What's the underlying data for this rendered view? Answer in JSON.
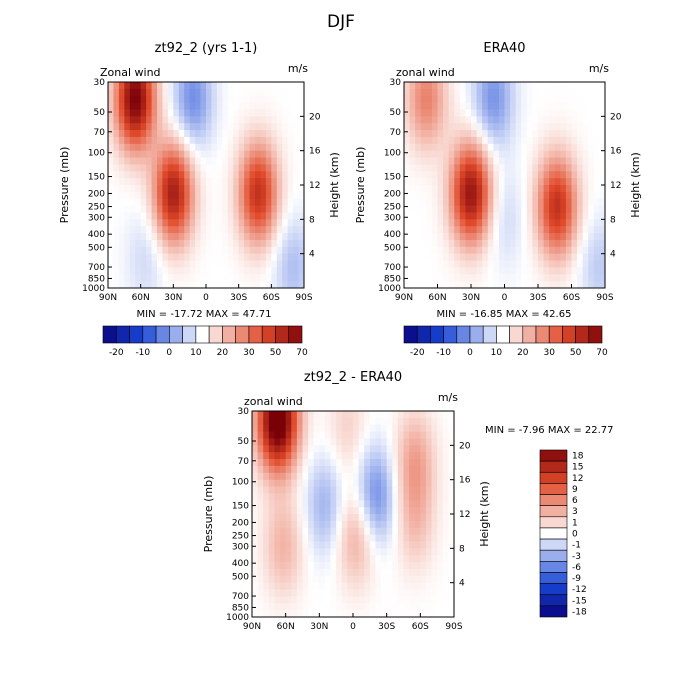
{
  "figure_title": "DJF",
  "colors": {
    "blue_dark": "#08007a",
    "blue": "#1846d6",
    "red": "#e14a2a",
    "red_dark": "#7a0008",
    "white": "#ffffff"
  },
  "chart_data": [
    {
      "type": "heatmap",
      "title": "zt92_2 (yrs 1-1)",
      "corner_left": "Zonal wind",
      "corner_right": "m/s",
      "xlabel": "",
      "ylabel": "Pressure (mb)",
      "ylabel_right": "Height (km)",
      "x_ticks": [
        "90N",
        "60N",
        "30N",
        "0",
        "30S",
        "60S",
        "90S"
      ],
      "x_range": [
        90,
        -90
      ],
      "y_ticks": [
        "30",
        "50",
        "70",
        "100",
        "150",
        "200",
        "250",
        "300",
        "400",
        "500",
        "700",
        "850",
        "1000"
      ],
      "y_range": [
        30,
        1000
      ],
      "y_scale": "log",
      "height_ticks": [
        "4",
        "8",
        "12",
        "16",
        "20"
      ],
      "min_label": "MIN = -17.72   MAX = 47.71",
      "min": -17.72,
      "max": 47.71,
      "colorbar_labels": [
        "-20",
        "-10",
        "0",
        "10",
        "20",
        "30",
        "50",
        "70"
      ],
      "features": [
        {
          "lat": 65,
          "p": 40,
          "value": 47.7
        },
        {
          "lat": 30,
          "p": 200,
          "value": 40
        },
        {
          "lat": -48,
          "p": 200,
          "value": 35
        },
        {
          "lat": 12,
          "p": 40,
          "value": -17.7
        },
        {
          "lat": 55,
          "p": 600,
          "value": -6
        },
        {
          "lat": -80,
          "p": 700,
          "value": -10
        }
      ]
    },
    {
      "type": "heatmap",
      "title": "ERA40",
      "corner_left": "zonal wind",
      "corner_right": "m/s",
      "xlabel": "",
      "ylabel": "Pressure (mb)",
      "ylabel_right": "Height (km)",
      "x_ticks": [
        "90N",
        "60N",
        "30N",
        "0",
        "30S",
        "60S",
        "90S"
      ],
      "x_range": [
        90,
        -90
      ],
      "y_ticks": [
        "30",
        "50",
        "70",
        "100",
        "150",
        "200",
        "250",
        "300",
        "400",
        "500",
        "700",
        "850",
        "1000"
      ],
      "y_range": [
        30,
        1000
      ],
      "y_scale": "log",
      "height_ticks": [
        "4",
        "8",
        "12",
        "16",
        "20"
      ],
      "min_label": "MIN = -16.85   MAX = 42.65",
      "min": -16.85,
      "max": 42.65,
      "colorbar_labels": [
        "-20",
        "-10",
        "0",
        "10",
        "20",
        "30",
        "50",
        "70"
      ],
      "features": [
        {
          "lat": 30,
          "p": 200,
          "value": 42.6
        },
        {
          "lat": -47,
          "p": 250,
          "value": 35
        },
        {
          "lat": 70,
          "p": 40,
          "value": 20
        },
        {
          "lat": 10,
          "p": 40,
          "value": -16.8
        },
        {
          "lat": 0,
          "p": 300,
          "value": -6
        },
        {
          "lat": -85,
          "p": 700,
          "value": -8
        }
      ]
    },
    {
      "type": "heatmap",
      "title": "zt92_2 - ERA40",
      "corner_left": "zonal wind",
      "corner_right": "m/s",
      "xlabel": "",
      "ylabel": "Pressure (mb)",
      "ylabel_right": "Height (km)",
      "x_ticks": [
        "90N",
        "60N",
        "30N",
        "0",
        "30S",
        "60S",
        "90S"
      ],
      "x_range": [
        90,
        -90
      ],
      "y_ticks": [
        "30",
        "50",
        "70",
        "100",
        "150",
        "200",
        "250",
        "300",
        "400",
        "500",
        "700",
        "850",
        "1000"
      ],
      "y_range": [
        30,
        1000
      ],
      "y_scale": "log",
      "height_ticks": [
        "4",
        "8",
        "12",
        "16",
        "20"
      ],
      "min_label": "MIN =   -7.96   MAX =   22.77",
      "min": -7.96,
      "max": 22.77,
      "colorbar_labels": [
        "18",
        "15",
        "12",
        "9",
        "6",
        "3",
        "1",
        "0",
        "-1",
        "-3",
        "-6",
        "-9",
        "-12",
        "-15",
        "-18"
      ],
      "features": [
        {
          "lat": 67,
          "p": 35,
          "value": 22.8
        },
        {
          "lat": 62,
          "p": 300,
          "value": 5
        },
        {
          "lat": -3,
          "p": 250,
          "value": 6
        },
        {
          "lat": -55,
          "p": 200,
          "value": 4
        },
        {
          "lat": -55,
          "p": 70,
          "value": 6
        },
        {
          "lat": 5,
          "p": 40,
          "value": 3
        },
        {
          "lat": -20,
          "p": 130,
          "value": -7.9
        },
        {
          "lat": 25,
          "p": 150,
          "value": -5
        }
      ]
    }
  ]
}
